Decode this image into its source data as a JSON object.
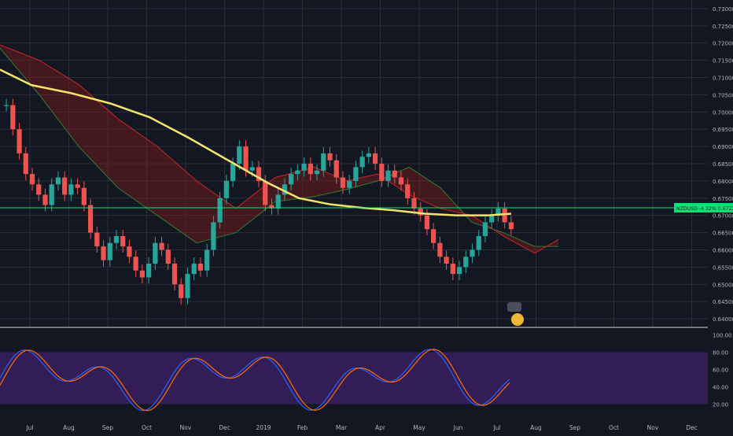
{
  "chart_data": [
    {
      "type": "candlestick",
      "symbol_label": "NZDUSD",
      "change_label": "-4.32%",
      "last_price": 0.67222,
      "last_price_label": "0.67222",
      "y_ticks": [
        "0.64000",
        "0.64500",
        "0.65000",
        "0.65500",
        "0.66000",
        "0.66500",
        "0.67000",
        "0.67500",
        "0.68000",
        "0.68500",
        "0.69000",
        "0.69500",
        "0.70000",
        "0.70500",
        "0.71000",
        "0.71500",
        "0.72000",
        "0.72500",
        "0.73000"
      ],
      "ylim": [
        0.6375,
        0.7325
      ],
      "x_ticks": [
        "Jul",
        "Aug",
        "Sep",
        "Oct",
        "Nov",
        "Dec",
        "2019",
        "Feb",
        "Mar",
        "Apr",
        "May",
        "Jun",
        "Jul",
        "Aug",
        "Sep",
        "Oct",
        "Nov",
        "Dec"
      ],
      "grid": true,
      "moving_average": {
        "color": "#f5e46c",
        "points": [
          [
            0,
            0.7123
          ],
          [
            40,
            0.7078
          ],
          [
            90,
            0.7055
          ],
          [
            140,
            0.7025
          ],
          [
            190,
            0.6985
          ],
          [
            240,
            0.6925
          ],
          [
            290,
            0.686
          ],
          [
            340,
            0.6795
          ],
          [
            380,
            0.675
          ],
          [
            420,
            0.6732
          ],
          [
            460,
            0.6722
          ],
          [
            500,
            0.6715
          ],
          [
            540,
            0.6705
          ],
          [
            580,
            0.67
          ],
          [
            620,
            0.67
          ],
          [
            650,
            0.6705
          ]
        ]
      },
      "ichimoku_cloud": {
        "span_a": [
          [
            0,
            0.7185
          ],
          [
            50,
            0.705
          ],
          [
            100,
            0.69
          ],
          [
            150,
            0.678
          ],
          [
            200,
            0.67
          ],
          [
            250,
            0.662
          ],
          [
            300,
            0.665
          ],
          [
            350,
            0.674
          ],
          [
            400,
            0.6755
          ],
          [
            440,
            0.6775
          ],
          [
            480,
            0.68
          ],
          [
            520,
            0.684
          ],
          [
            560,
            0.678
          ],
          [
            600,
            0.668
          ],
          [
            640,
            0.665
          ],
          [
            680,
            0.661
          ],
          [
            710,
            0.661
          ]
        ],
        "span_b": [
          [
            0,
            0.7195
          ],
          [
            50,
            0.715
          ],
          [
            100,
            0.708
          ],
          [
            150,
            0.698
          ],
          [
            200,
            0.69
          ],
          [
            250,
            0.68
          ],
          [
            300,
            0.672
          ],
          [
            350,
            0.681
          ],
          [
            400,
            0.684
          ],
          [
            440,
            0.68
          ],
          [
            480,
            0.682
          ],
          [
            520,
            0.676
          ],
          [
            560,
            0.672
          ],
          [
            600,
            0.67
          ],
          [
            640,
            0.664
          ],
          [
            680,
            0.659
          ],
          [
            710,
            0.663
          ]
        ],
        "bull_color": "#1b5e20",
        "bear_color": "#7f1d1d"
      },
      "candles_close": [
        0.702,
        0.695,
        0.688,
        0.682,
        0.679,
        0.676,
        0.673,
        0.679,
        0.681,
        0.676,
        0.679,
        0.678,
        0.673,
        0.665,
        0.661,
        0.657,
        0.662,
        0.664,
        0.661,
        0.658,
        0.654,
        0.652,
        0.656,
        0.662,
        0.66,
        0.656,
        0.65,
        0.646,
        0.653,
        0.656,
        0.654,
        0.66,
        0.668,
        0.675,
        0.68,
        0.685,
        0.69,
        0.683,
        0.684,
        0.68,
        0.673,
        0.672,
        0.676,
        0.679,
        0.682,
        0.683,
        0.685,
        0.682,
        0.683,
        0.688,
        0.686,
        0.681,
        0.678,
        0.68,
        0.684,
        0.687,
        0.688,
        0.685,
        0.68,
        0.683,
        0.681,
        0.679,
        0.675,
        0.672,
        0.67,
        0.666,
        0.662,
        0.658,
        0.656,
        0.653,
        0.655,
        0.658,
        0.66,
        0.664,
        0.668,
        0.67,
        0.672,
        0.668,
        0.666
      ],
      "rsi_panel": {
        "y_ticks": [
          "20.00",
          "40.00",
          "60.00",
          "80.00",
          "100.00"
        ],
        "band": [
          20,
          80
        ],
        "band_color": "#3b1f64",
        "k_color": "#2962ff",
        "d_color": "#ff6d00"
      }
    }
  ]
}
